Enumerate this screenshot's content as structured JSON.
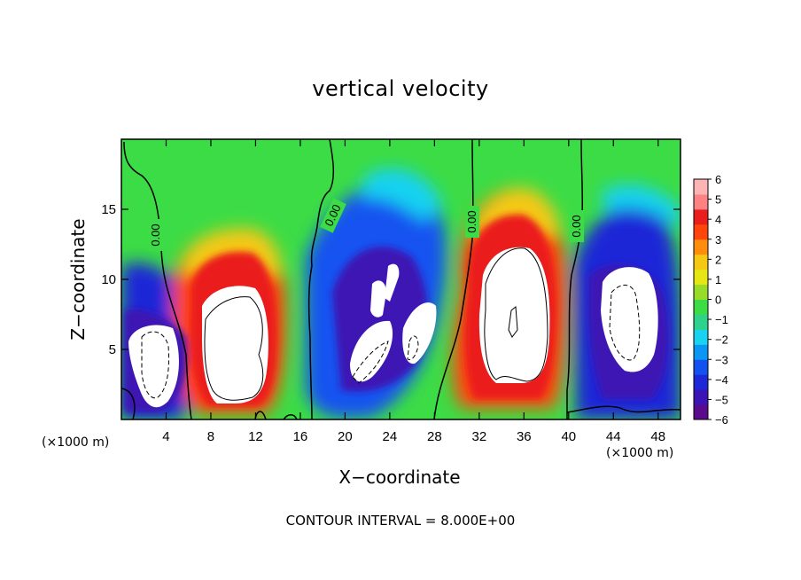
{
  "chart_data": {
    "type": "heatmap",
    "title": "vertical velocity",
    "xlabel": "X−coordinate",
    "ylabel": "Z−coordinate",
    "x_scale_note": "(×1000 m)",
    "x_scale_note_right": "(×1000 m)",
    "contour_note": "CONTOUR INTERVAL = 8.000E+00",
    "xlim": [
      0,
      50
    ],
    "ylim": [
      0,
      20
    ],
    "x_ticks": [
      4,
      8,
      12,
      16,
      20,
      24,
      28,
      32,
      36,
      40,
      44,
      48
    ],
    "y_ticks": [
      5,
      10,
      15
    ],
    "colorbar": {
      "vmin": -6,
      "vmax": 6,
      "tick_labels": [
        "6",
        "5",
        "4",
        "3",
        "2",
        "1",
        "0",
        "−1",
        "−2",
        "−3",
        "−4",
        "−5",
        "−6"
      ],
      "colors": [
        "#5a0a8c",
        "#3c14b4",
        "#1e28d7",
        "#1452f0",
        "#0a96f5",
        "#19d2f0",
        "#2dd28c",
        "#3cdc46",
        "#96dc28",
        "#e6e614",
        "#f5c814",
        "#ff8c0a",
        "#ff460a",
        "#eb1e1e",
        "#ff8282",
        "#ffb4b4"
      ]
    },
    "zero_contour_labels": [
      "0.00",
      "0.00",
      "0.00",
      "0.00"
    ],
    "cells": [
      {
        "x": 3.5,
        "z": 5.0,
        "w": -9.0
      },
      {
        "x": 10.0,
        "z": 5.5,
        "w": 11.0
      },
      {
        "x": 21.5,
        "z": 6.0,
        "w": -8.0
      },
      {
        "x": 26.0,
        "z": 5.0,
        "w": -8.0
      },
      {
        "x": 35.5,
        "z": 7.5,
        "w": 14.0
      },
      {
        "x": 46.0,
        "z": 6.0,
        "w": -9.0
      }
    ]
  }
}
